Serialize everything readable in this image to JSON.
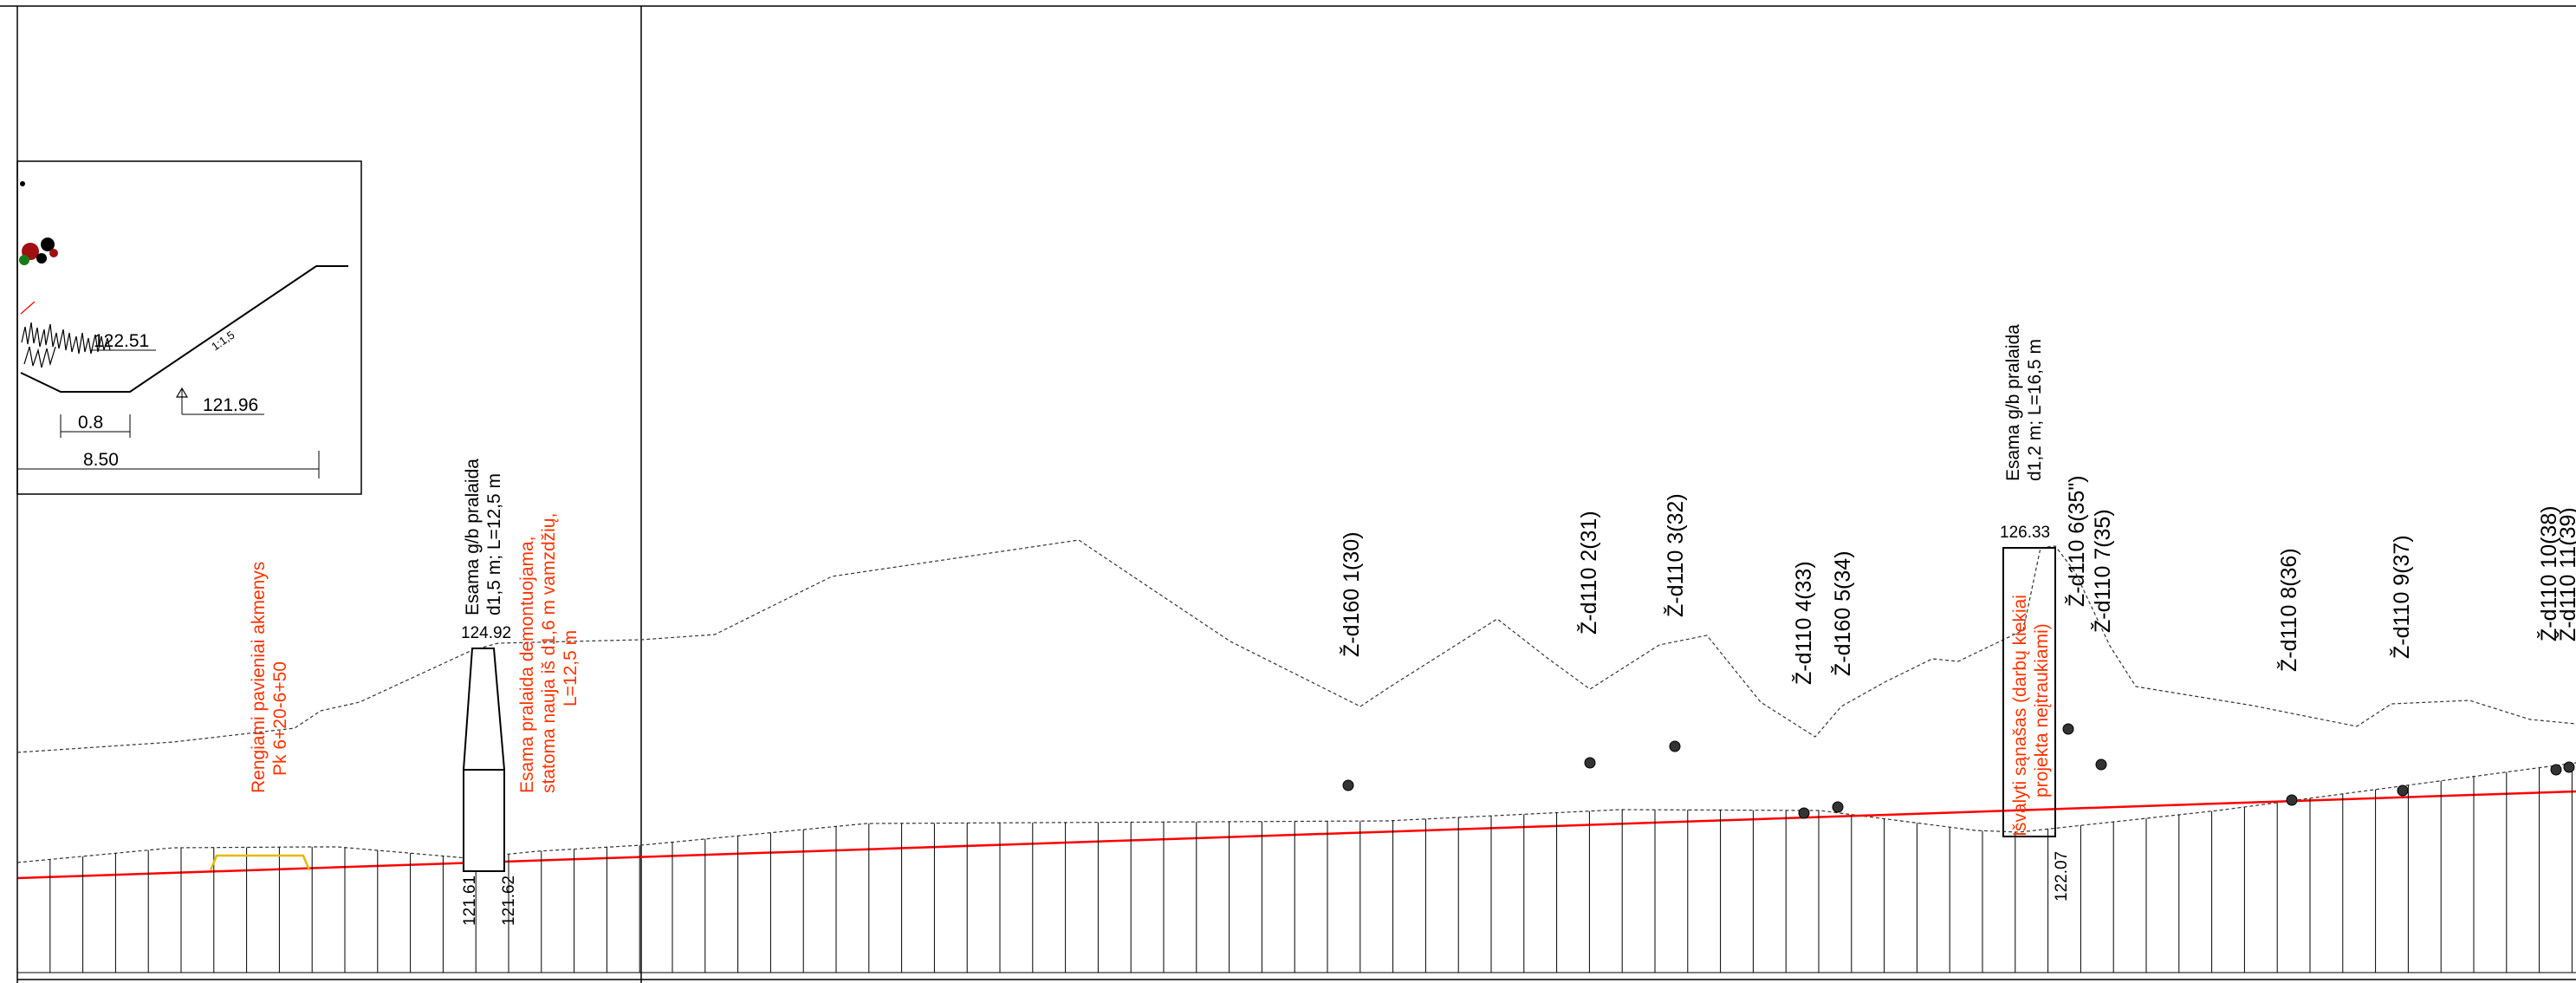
{
  "colors": {
    "ink": "#000000",
    "design_line": "#ff0000",
    "notes": "#ff3300",
    "highlight": "#e6b800"
  },
  "inset": {
    "dim_top_elev": "122.51",
    "slope": "1:1,5",
    "bottom_elev": "121.96",
    "width_small": "0.8",
    "width_total": "8.50"
  },
  "culverts": [
    {
      "title": "Esama g/b pralaida",
      "spec": "d1,5 m; L=12,5 m",
      "top_elev": "124.92",
      "bottom_left": "121.61",
      "bottom_right": "121.62"
    },
    {
      "title": "Esama g/b pralaida",
      "spec": "d1,2 m; L=16,5 m",
      "top_elev": "126.33",
      "bottom": "122.07"
    }
  ],
  "notes": {
    "stones_1": "Rengiami pavieniai akmenys",
    "stones_2": "Pk 6+20-6+50",
    "demolish_1": "Esama pralaida demontuojama,",
    "demolish_2": "statoma nauja iš d1,6 m vamzdžių,",
    "demolish_3": "L=12,5 m",
    "clean_1": "Išvalyti sąnašas (darbų kiekiai",
    "clean_2": "projekta neįtraukiami)"
  },
  "drains": [
    "Ž-d160 1(30)",
    "Ž-d110 2(31)",
    "Ž-d110 3(32)",
    "Ž-d110 4(33)",
    "Ž-d160 5(34)",
    "Ž-d110 6(35\")",
    "Ž-d110 7(35)",
    "Ž-d110 8(36)",
    "Ž-d110 9(37)",
    "Ž-d110 10(38)",
    "Ž-d110 11(39)"
  ]
}
